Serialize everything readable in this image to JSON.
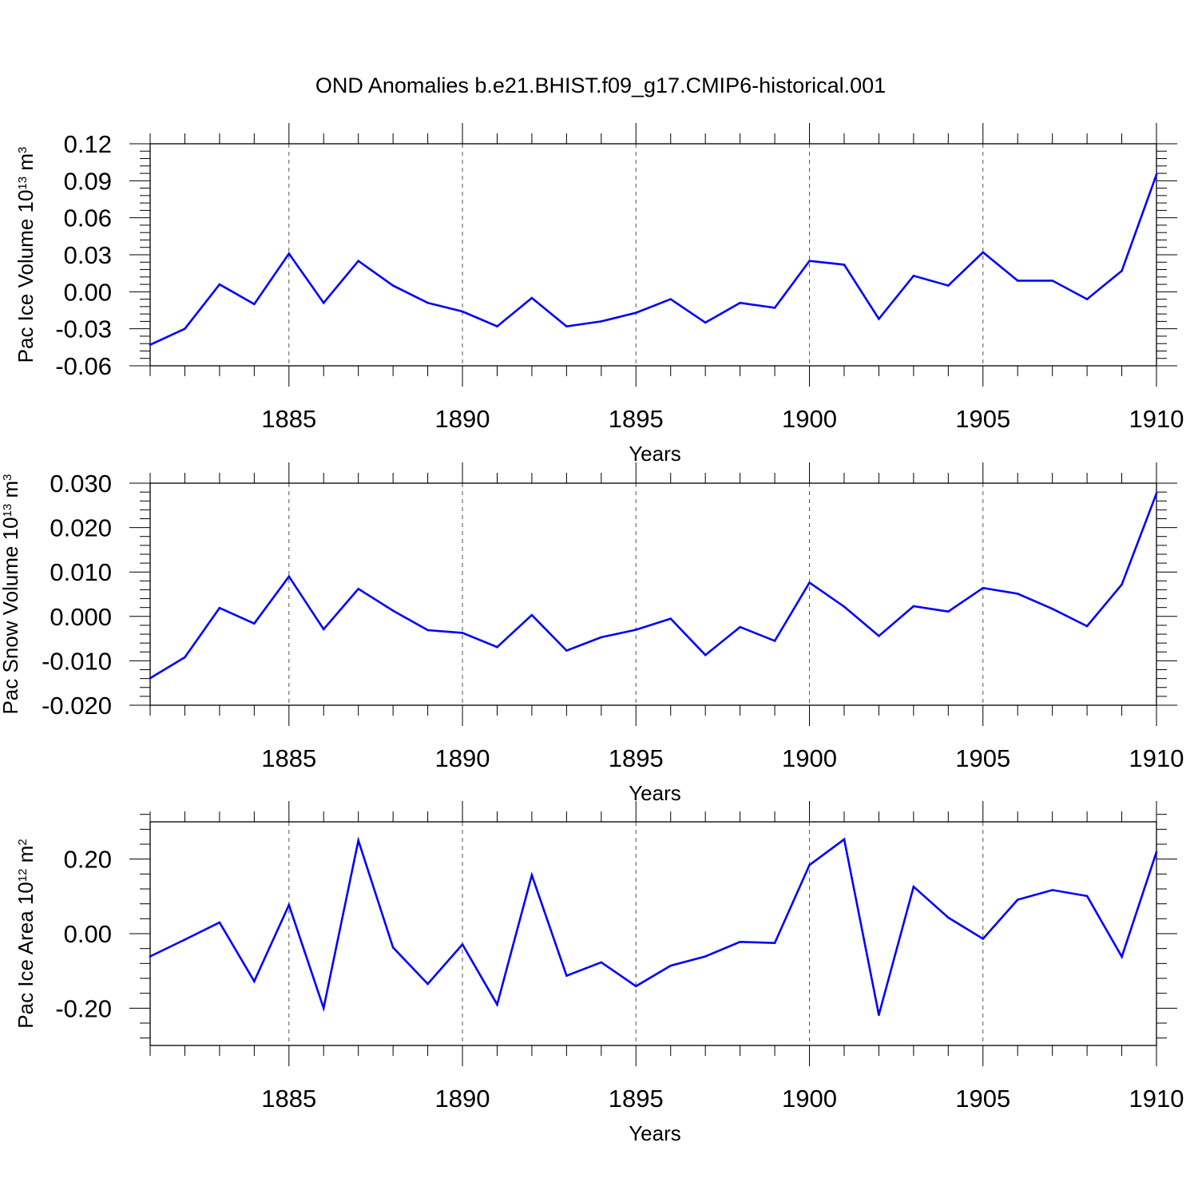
{
  "title": "OND Anomalies b.e21.BHIST.f09_g17.CMIP6-historical.001",
  "chart_data": [
    {
      "type": "line",
      "id": "ice-volume",
      "ylabel_main": "Pac Ice Volume 10",
      "ylabel_exp": "13",
      "ylabel_unit": " m",
      "ylabel_unit_exp": "3",
      "xlabel": "Years",
      "x": [
        1881,
        1882,
        1883,
        1884,
        1885,
        1886,
        1887,
        1888,
        1889,
        1890,
        1891,
        1892,
        1893,
        1894,
        1895,
        1896,
        1897,
        1898,
        1899,
        1900,
        1901,
        1902,
        1903,
        1904,
        1905,
        1906,
        1907,
        1908,
        1909,
        1910
      ],
      "values": [
        -0.043,
        -0.03,
        0.006,
        -0.01,
        0.031,
        -0.009,
        0.025,
        0.005,
        -0.009,
        -0.016,
        -0.028,
        -0.005,
        -0.028,
        -0.024,
        -0.017,
        -0.006,
        -0.025,
        -0.009,
        -0.013,
        0.025,
        0.022,
        -0.022,
        0.013,
        0.005,
        0.032,
        0.009,
        0.009,
        -0.006,
        0.017,
        0.095
      ],
      "ylim": [
        -0.06,
        0.12
      ],
      "yticks": [
        0.12,
        0.09,
        0.06,
        0.03,
        0.0,
        -0.03,
        -0.06
      ],
      "ytick_labels": [
        "0.12",
        "0.09",
        "0.06",
        "0.03",
        "0.00",
        "-0.03",
        "-0.06"
      ],
      "xticks": [
        1885,
        1890,
        1895,
        1900,
        1905,
        1910
      ],
      "xtick_labels": [
        "1885",
        "1890",
        "1895",
        "1900",
        "1905",
        "1910"
      ]
    },
    {
      "type": "line",
      "id": "snow-volume",
      "ylabel_main": "Pac Snow Volume 10",
      "ylabel_exp": "13",
      "ylabel_unit": " m",
      "ylabel_unit_exp": "3",
      "xlabel": "Years",
      "x": [
        1881,
        1882,
        1883,
        1884,
        1885,
        1886,
        1887,
        1888,
        1889,
        1890,
        1891,
        1892,
        1893,
        1894,
        1895,
        1896,
        1897,
        1898,
        1899,
        1900,
        1901,
        1902,
        1903,
        1904,
        1905,
        1906,
        1907,
        1908,
        1909,
        1910
      ],
      "values": [
        -0.0139,
        -0.0092,
        0.0019,
        -0.0016,
        0.009,
        -0.0029,
        0.0062,
        0.0013,
        -0.0031,
        -0.0037,
        -0.0069,
        0.0003,
        -0.0077,
        -0.0047,
        -0.003,
        -0.0005,
        -0.0087,
        -0.0024,
        -0.0055,
        0.0076,
        0.0022,
        -0.0044,
        0.0023,
        0.0011,
        0.0064,
        0.0051,
        0.0017,
        -0.0022,
        0.0072,
        0.0277
      ],
      "ylim": [
        -0.02,
        0.03
      ],
      "yticks": [
        0.03,
        0.02,
        0.01,
        0.0,
        -0.01,
        -0.02
      ],
      "ytick_labels": [
        "0.030",
        "0.020",
        "0.010",
        "0.000",
        "-0.010",
        "-0.020"
      ],
      "xticks": [
        1885,
        1890,
        1895,
        1900,
        1905,
        1910
      ],
      "xtick_labels": [
        "1885",
        "1890",
        "1895",
        "1900",
        "1905",
        "1910"
      ]
    },
    {
      "type": "line",
      "id": "ice-area",
      "ylabel_main": "Pac Ice Area 10",
      "ylabel_exp": "12",
      "ylabel_unit": " m",
      "ylabel_unit_exp": "2",
      "xlabel": "Years",
      "x": [
        1881,
        1882,
        1883,
        1884,
        1885,
        1886,
        1887,
        1888,
        1889,
        1890,
        1891,
        1892,
        1893,
        1894,
        1895,
        1896,
        1897,
        1898,
        1899,
        1900,
        1901,
        1902,
        1903,
        1904,
        1905,
        1906,
        1907,
        1908,
        1909,
        1910
      ],
      "values": [
        -0.061,
        -0.016,
        0.03,
        -0.128,
        0.077,
        -0.2,
        0.25,
        -0.037,
        -0.135,
        -0.029,
        -0.19,
        0.157,
        -0.113,
        -0.077,
        -0.141,
        -0.086,
        -0.061,
        -0.022,
        -0.025,
        0.184,
        0.253,
        -0.218,
        0.126,
        0.043,
        -0.014,
        0.091,
        0.117,
        0.101,
        -0.062,
        0.219
      ],
      "ylim": [
        -0.3,
        0.3
      ],
      "yticks": [
        0.2,
        0.0,
        -0.2
      ],
      "ytick_labels": [
        "0.20",
        "0.00",
        "-0.20"
      ],
      "xticks": [
        1885,
        1890,
        1895,
        1900,
        1905,
        1910
      ],
      "xtick_labels": [
        "1885",
        "1890",
        "1895",
        "1900",
        "1905",
        "1910"
      ]
    }
  ],
  "colors": {
    "series": "#0000ff",
    "axis": "#000000",
    "grid": "#555555"
  }
}
